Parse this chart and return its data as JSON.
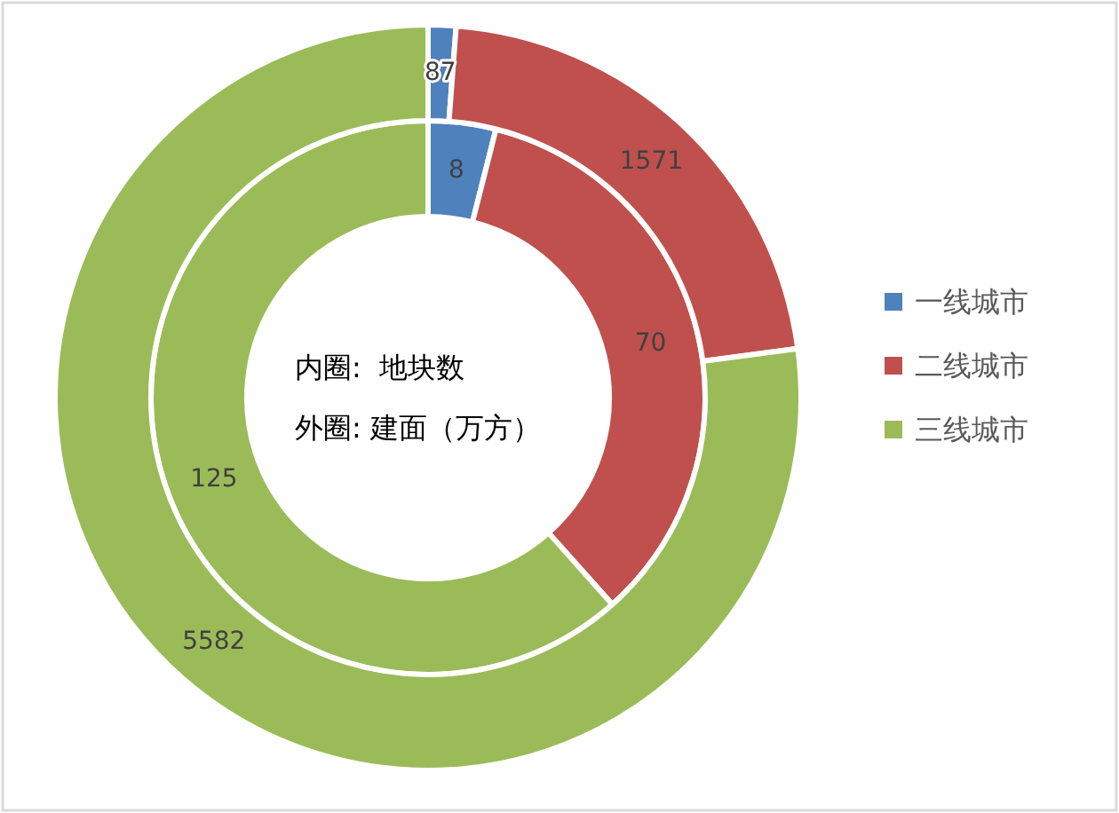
{
  "chart_data": {
    "type": "donut",
    "categories": [
      "一线城市",
      "二线城市",
      "三线城市"
    ],
    "colors": [
      "#4f81bd",
      "#c0504d",
      "#9bbb59"
    ],
    "series": [
      {
        "values": [
          8,
          70,
          125
        ]
      },
      {
        "values": [
          87,
          1571,
          5582
        ]
      }
    ],
    "data_labels": true,
    "legend": "right",
    "annotations": [
      "内圈:  地块数",
      "外圈: 建面（万方）"
    ]
  }
}
